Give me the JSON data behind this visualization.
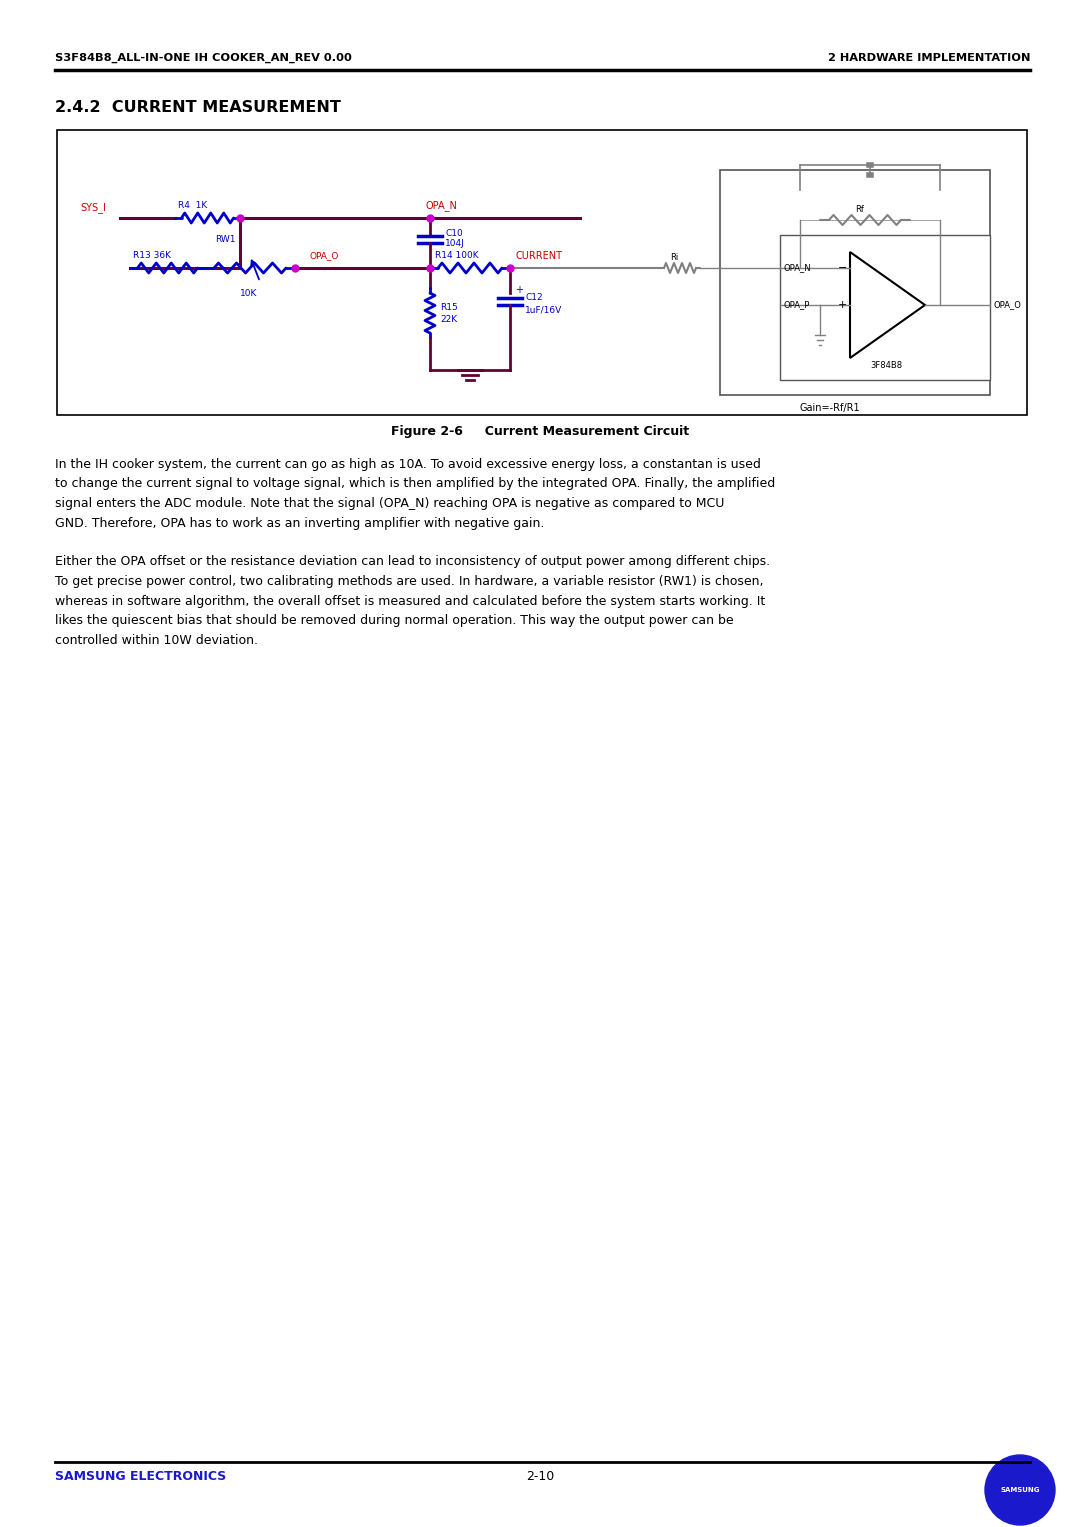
{
  "page_width": 10.8,
  "page_height": 15.27,
  "bg_color": "#ffffff",
  "header_left": "S3F84B8_ALL-IN-ONE IH COOKER_AN_REV 0.00",
  "header_right": "2 HARDWARE IMPLEMENTATION",
  "section_title": "2.4.2  CURRENT MEASUREMENT",
  "figure_caption": "Figure 2-6     Current Measurement Circuit",
  "footer_center": "2-10",
  "footer_left": "SAMSUNG ELECTRONICS",
  "footer_color": "#1a1acc",
  "body_text": [
    "In the IH cooker system, the current can go as high as 10A. To avoid excessive energy loss, a constantan is used",
    "to change the current signal to voltage signal, which is then amplified by the integrated OPA. Finally, the amplified",
    "signal enters the ADC module. Note that the signal (OPA_N) reaching OPA is negative as compared to MCU",
    "GND. Therefore, OPA has to work as an inverting amplifier with negative gain.",
    "",
    "Either the OPA offset or the resistance deviation can lead to inconsistency of output power among different chips.",
    "To get precise power control, two calibrating methods are used. In hardware, a variable resistor (RW1) is chosen,",
    "whereas in software algorithm, the overall offset is measured and calculated before the system starts working. It",
    "likes the quiescent bias that should be removed during normal operation. This way the output power can be",
    "controlled within 10W deviation."
  ],
  "wire_color": "#660033",
  "component_color": "#0000cc",
  "label_red_color": "#cc0000",
  "junction_color": "#cc00cc"
}
